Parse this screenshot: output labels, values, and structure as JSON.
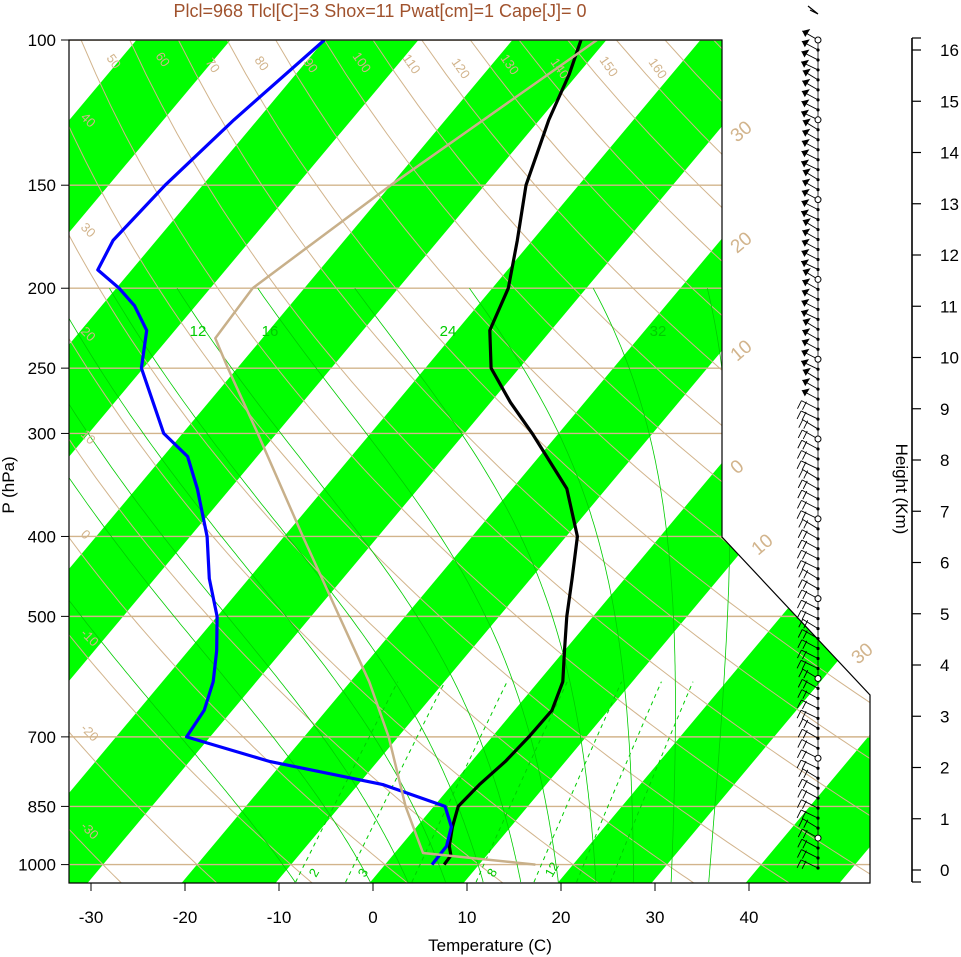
{
  "chart_data": {
    "type": "line",
    "subtitle": "Plcl=968 Tlcl[C]=3 Shox=11 Pwat[cm]=1 Cape[J]= 0",
    "xlabel": "Temperature (C)",
    "ylabel": "P (hPa)",
    "right_axis_label": "Height (Km)",
    "x_tick_labels": [
      "-30",
      "-20",
      "-10",
      "0",
      "10",
      "20",
      "30",
      "40"
    ],
    "x_ticks": [
      -30,
      -20,
      -10,
      0,
      10,
      20,
      30,
      40
    ],
    "xlim": [
      -33,
      52
    ],
    "y_tick_labels": [
      "100",
      "150",
      "200",
      "250",
      "300",
      "400",
      "500",
      "700",
      "850",
      "1000"
    ],
    "y_ticks": [
      100,
      150,
      200,
      250,
      300,
      400,
      500,
      700,
      850,
      1000
    ],
    "ylim": [
      1050,
      100
    ],
    "y_scale": "log",
    "height_ticks_km": [
      0,
      1,
      2,
      3,
      4,
      5,
      6,
      7,
      8,
      9,
      10,
      11,
      12,
      13,
      14,
      15,
      16
    ],
    "height_tick_labels": [
      "0",
      "1",
      "2",
      "3",
      "4",
      "5",
      "6",
      "7",
      "8",
      "9",
      "10",
      "11",
      "12",
      "13",
      "14",
      "15",
      "16"
    ],
    "grid": true,
    "background_band_color": "#00ff00",
    "isobar_color": "#d2b48c",
    "dry_adiabat_labels": [
      "50",
      "60",
      "70",
      "80",
      "90",
      "100",
      "110",
      "120",
      "130",
      "140",
      "150",
      "160"
    ],
    "left_edge_labels": [
      "40",
      "30",
      "20",
      "10",
      "0",
      "-10",
      "-20",
      "-30"
    ],
    "right_edge_labels": [
      "30",
      "20",
      "10",
      "0",
      "10",
      "30"
    ],
    "mixing_ratio_labels": [
      "2",
      "3",
      "8",
      "12"
    ],
    "moist_adiabat_labels": [
      "12",
      "16",
      "24",
      "32"
    ],
    "series": [
      {
        "name": "",
        "color": "#000000",
        "points": [
          {
            "p": 1000,
            "t": 6.3
          },
          {
            "p": 975,
            "t": 6.2
          },
          {
            "p": 950,
            "t": 5.2
          },
          {
            "p": 900,
            "t": 3.8
          },
          {
            "p": 850,
            "t": 2.6
          },
          {
            "p": 800,
            "t": 2.9
          },
          {
            "p": 750,
            "t": 3.6
          },
          {
            "p": 700,
            "t": 3.9
          },
          {
            "p": 650,
            "t": 4.0
          },
          {
            "p": 600,
            "t": 2.6
          },
          {
            "p": 550,
            "t": 0.0
          },
          {
            "p": 500,
            "t": -2.8
          },
          {
            "p": 450,
            "t": -5.6
          },
          {
            "p": 400,
            "t": -8.8
          },
          {
            "p": 350,
            "t": -14.2
          },
          {
            "p": 300,
            "t": -22.8
          },
          {
            "p": 275,
            "t": -27.9
          },
          {
            "p": 250,
            "t": -33.0
          },
          {
            "p": 225,
            "t": -36.5
          },
          {
            "p": 200,
            "t": -38.3
          },
          {
            "p": 175,
            "t": -41.6
          },
          {
            "p": 150,
            "t": -45.6
          },
          {
            "p": 125,
            "t": -49.0
          },
          {
            "p": 110,
            "t": -50.9
          },
          {
            "p": 100,
            "t": -52.7
          }
        ]
      },
      {
        "name": "",
        "color": "#0000ff",
        "points": [
          {
            "p": 1000,
            "t": 5.0
          },
          {
            "p": 950,
            "t": 4.9
          },
          {
            "p": 900,
            "t": 3.7
          },
          {
            "p": 850,
            "t": 1.2
          },
          {
            "p": 800,
            "t": -7.3
          },
          {
            "p": 750,
            "t": -21.4
          },
          {
            "p": 700,
            "t": -32.5
          },
          {
            "p": 650,
            "t": -33.0
          },
          {
            "p": 600,
            "t": -34.6
          },
          {
            "p": 550,
            "t": -37.0
          },
          {
            "p": 500,
            "t": -40.0
          },
          {
            "p": 450,
            "t": -44.2
          },
          {
            "p": 400,
            "t": -48.2
          },
          {
            "p": 350,
            "t": -53.5
          },
          {
            "p": 320,
            "t": -57.4
          },
          {
            "p": 300,
            "t": -62.0
          },
          {
            "p": 250,
            "t": -70.2
          },
          {
            "p": 225,
            "t": -73.0
          },
          {
            "p": 210,
            "t": -76.5
          },
          {
            "p": 200,
            "t": -79.7
          },
          {
            "p": 190,
            "t": -83.6
          },
          {
            "p": 175,
            "t": -84.6
          },
          {
            "p": 150,
            "t": -84.0
          },
          {
            "p": 125,
            "t": -82.5
          },
          {
            "p": 100,
            "t": -80.0
          }
        ]
      },
      {
        "name": "",
        "color": "#c8b08a",
        "points": [
          {
            "p": 1000,
            "t": 16.0
          },
          {
            "p": 968,
            "t": 3.0
          },
          {
            "p": 850,
            "t": -3.0
          },
          {
            "p": 700,
            "t": -11.0
          },
          {
            "p": 600,
            "t": -18.0
          },
          {
            "p": 500,
            "t": -27.0
          },
          {
            "p": 400,
            "t": -38.0
          },
          {
            "p": 300,
            "t": -52.0
          },
          {
            "p": 250,
            "t": -61.0
          },
          {
            "p": 230,
            "t": -65.0
          },
          {
            "p": 200,
            "t": -65.5
          },
          {
            "p": 150,
            "t": -60.0
          },
          {
            "p": 100,
            "t": -51.0
          }
        ]
      }
    ],
    "wind_barbs_count": 84
  }
}
